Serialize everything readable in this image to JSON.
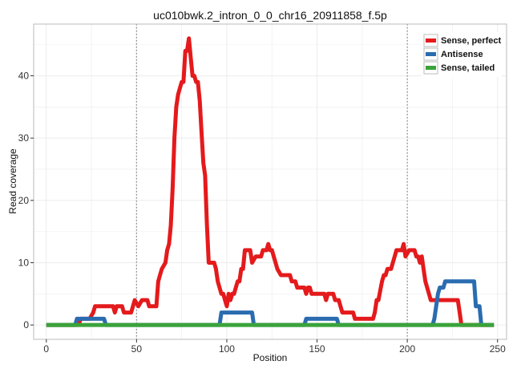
{
  "chart_data": {
    "type": "line",
    "title": "uc010bwk.2_intron_0_0_chr16_20911858_f.5p",
    "xlabel": "Position",
    "ylabel": "Read coverage",
    "xlim": [
      -7,
      255
    ],
    "ylim": [
      -2.3,
      48.3
    ],
    "x_ticks": [
      0,
      50,
      100,
      150,
      200,
      250
    ],
    "y_ticks": [
      0,
      10,
      20,
      30,
      40
    ],
    "x_tick_labels": [
      "0",
      "50",
      "100",
      "150",
      "200",
      "250"
    ],
    "y_tick_labels": [
      "0",
      "10",
      "20",
      "30",
      "40"
    ],
    "grid": true,
    "reference_lines_x": [
      50,
      200
    ],
    "legend": {
      "position": "top-right"
    },
    "colors": {
      "panel_border": "#bbbbbb",
      "grid": "#ececec",
      "reference_line": "#888888"
    },
    "series": [
      {
        "name": "Sense, perfect",
        "color": "#e41a1c",
        "points": [
          [
            0,
            0
          ],
          [
            18,
            0
          ],
          [
            19,
            1
          ],
          [
            24,
            1
          ],
          [
            26,
            2
          ],
          [
            27,
            3
          ],
          [
            37,
            3
          ],
          [
            38,
            2
          ],
          [
            39,
            3
          ],
          [
            42,
            3
          ],
          [
            43,
            2
          ],
          [
            47,
            2
          ],
          [
            48,
            3
          ],
          [
            49,
            4
          ],
          [
            51,
            3
          ],
          [
            53,
            4
          ],
          [
            56,
            4
          ],
          [
            57,
            3
          ],
          [
            61,
            3
          ],
          [
            62,
            7
          ],
          [
            63,
            8
          ],
          [
            64,
            9
          ],
          [
            66,
            10
          ],
          [
            67,
            12
          ],
          [
            68,
            13
          ],
          [
            69,
            16
          ],
          [
            70,
            22
          ],
          [
            71,
            30
          ],
          [
            72,
            35
          ],
          [
            73,
            37
          ],
          [
            74,
            38
          ],
          [
            75,
            39
          ],
          [
            76,
            39
          ],
          [
            77,
            44
          ],
          [
            78,
            44
          ],
          [
            79,
            46
          ],
          [
            80,
            43
          ],
          [
            81,
            40
          ],
          [
            82,
            40
          ],
          [
            83,
            39
          ],
          [
            84,
            39
          ],
          [
            85,
            36
          ],
          [
            86,
            31
          ],
          [
            87,
            26
          ],
          [
            88,
            24
          ],
          [
            89,
            16
          ],
          [
            90,
            10
          ],
          [
            93,
            10
          ],
          [
            94,
            9
          ],
          [
            95,
            7
          ],
          [
            96,
            6
          ],
          [
            97,
            5
          ],
          [
            98,
            5
          ],
          [
            99,
            4
          ],
          [
            100,
            3
          ],
          [
            101,
            5
          ],
          [
            102,
            4
          ],
          [
            103,
            5
          ],
          [
            104,
            5
          ],
          [
            105,
            6
          ],
          [
            106,
            7
          ],
          [
            107,
            7
          ],
          [
            108,
            9
          ],
          [
            109,
            9
          ],
          [
            110,
            12
          ],
          [
            113,
            12
          ],
          [
            114,
            10
          ],
          [
            116,
            11
          ],
          [
            119,
            11
          ],
          [
            120,
            12
          ],
          [
            122,
            12
          ],
          [
            123,
            13
          ],
          [
            124,
            12
          ],
          [
            125,
            12
          ],
          [
            126,
            11
          ],
          [
            127,
            10
          ],
          [
            128,
            9
          ],
          [
            130,
            8
          ],
          [
            135,
            8
          ],
          [
            136,
            7
          ],
          [
            138,
            7
          ],
          [
            139,
            6
          ],
          [
            143,
            6
          ],
          [
            144,
            5
          ],
          [
            145,
            6
          ],
          [
            146,
            6
          ],
          [
            147,
            5
          ],
          [
            154,
            5
          ],
          [
            155,
            4
          ],
          [
            156,
            5
          ],
          [
            159,
            5
          ],
          [
            160,
            4
          ],
          [
            162,
            4
          ],
          [
            163,
            3
          ],
          [
            164,
            2
          ],
          [
            170,
            2
          ],
          [
            171,
            1
          ],
          [
            181,
            1
          ],
          [
            182,
            2
          ],
          [
            183,
            4
          ],
          [
            184,
            4
          ],
          [
            186,
            7
          ],
          [
            187,
            8
          ],
          [
            188,
            8
          ],
          [
            189,
            9
          ],
          [
            190,
            9
          ],
          [
            191,
            9
          ],
          [
            192,
            10
          ],
          [
            193,
            11
          ],
          [
            194,
            12
          ],
          [
            197,
            12
          ],
          [
            198,
            13
          ],
          [
            199,
            11
          ],
          [
            201,
            12
          ],
          [
            204,
            12
          ],
          [
            205,
            11
          ],
          [
            206,
            11
          ],
          [
            207,
            10
          ],
          [
            208,
            11
          ],
          [
            209,
            9
          ],
          [
            210,
            7
          ],
          [
            212,
            5
          ],
          [
            213,
            4
          ],
          [
            228,
            4
          ],
          [
            229,
            2
          ],
          [
            230,
            0
          ],
          [
            248,
            0
          ]
        ]
      },
      {
        "name": "Antisense",
        "color": "#2b6cb0",
        "points": [
          [
            0,
            0
          ],
          [
            16,
            0
          ],
          [
            17,
            1
          ],
          [
            32,
            1
          ],
          [
            33,
            0
          ],
          [
            96,
            0
          ],
          [
            97,
            2
          ],
          [
            112,
            2
          ],
          [
            113,
            2
          ],
          [
            114,
            2
          ],
          [
            115,
            0
          ],
          [
            143,
            0
          ],
          [
            144,
            1
          ],
          [
            161,
            1
          ],
          [
            162,
            0
          ],
          [
            214,
            0
          ],
          [
            215,
            1
          ],
          [
            217,
            5
          ],
          [
            218,
            6
          ],
          [
            219,
            6
          ],
          [
            220,
            6
          ],
          [
            221,
            7
          ],
          [
            237,
            7
          ],
          [
            238,
            3
          ],
          [
            240,
            3
          ],
          [
            241,
            0
          ],
          [
            248,
            0
          ]
        ]
      },
      {
        "name": "Sense, tailed",
        "color": "#3aa33a",
        "points": [
          [
            0,
            0
          ],
          [
            248,
            0
          ]
        ]
      }
    ]
  }
}
